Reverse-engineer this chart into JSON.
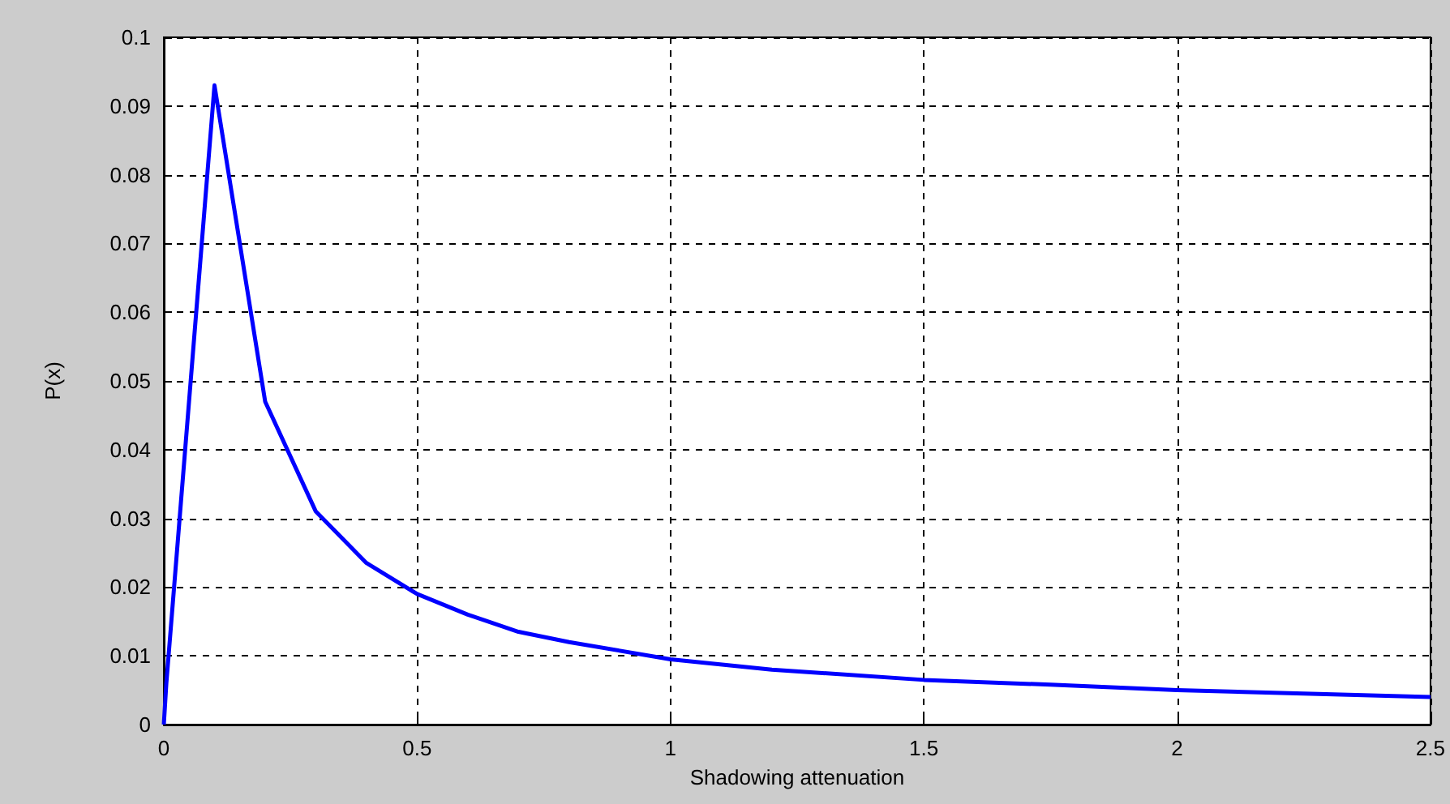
{
  "chart_data": {
    "type": "line",
    "xlabel": "Shadowing attenuation",
    "ylabel": "P(x)",
    "x": [
      0,
      0.005,
      0.1,
      0.2,
      0.3,
      0.4,
      0.5,
      0.6,
      0.7,
      0.8,
      1,
      1.2,
      1.5,
      1.75,
      2,
      2.25,
      2.5
    ],
    "series": [
      {
        "color": "#0000ff",
        "values": [
          0,
          0.006,
          0.093,
          0.047,
          0.031,
          0.0235,
          0.019,
          0.016,
          0.0135,
          0.012,
          0.0095,
          0.008,
          0.0065,
          0.0058,
          0.005,
          0.0045,
          0.004
        ]
      }
    ],
    "xlim": [
      0,
      2.5
    ],
    "xticks": [
      0,
      0.5,
      1,
      1.5,
      2,
      2.5
    ],
    "ylim": [
      0,
      0.1
    ],
    "yticks": [
      0,
      0.01,
      0.02,
      0.03,
      0.04,
      0.05,
      0.06,
      0.07,
      0.08,
      0.09,
      0.1
    ],
    "grid": true,
    "marker": "none",
    "line_style": "solid"
  }
}
